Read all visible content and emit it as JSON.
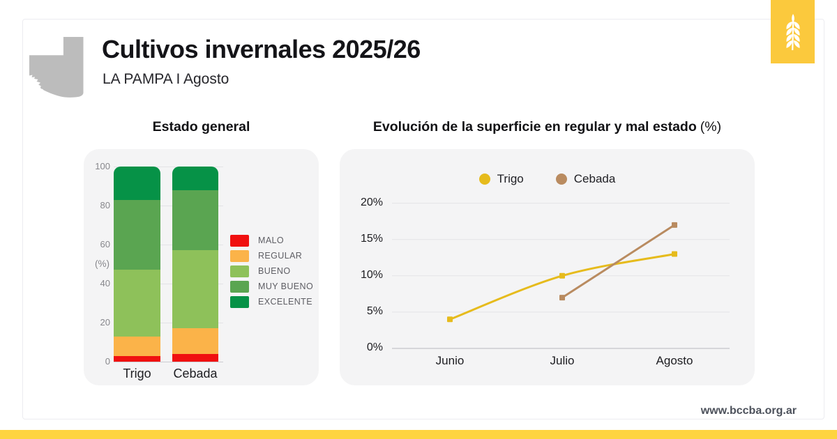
{
  "header": {
    "title": "Cultivos invernales 2025/26",
    "subtitle": "LA PAMPA I Agosto"
  },
  "footer": {
    "website": "www.bccba.org.ar"
  },
  "icons": {
    "brand": "wheat-spike-icon",
    "map": "la-pampa-province-silhouette"
  },
  "theme": {
    "accent_yellow": "#FBC93D",
    "footer_bar_yellow": "#FED440",
    "panel_bg": "#F4F4F5",
    "card_border": "#ECECF0",
    "map_gray": "#BCBCBC",
    "gridline": "#E3E3E6",
    "baseline": "#CCCCD1",
    "axis_text_gray": "#87878C",
    "legend_text_gray": "#5E5E64",
    "website_text": "#4C515B"
  },
  "chart_data": [
    {
      "type": "bar",
      "stacked": true,
      "title": "Estado general",
      "ylabel": "(%)",
      "ylim": [
        0,
        100
      ],
      "yticks": [
        0,
        20,
        40,
        60,
        80,
        100
      ],
      "grid": true,
      "legend_position": "right",
      "categories": [
        "Trigo",
        "Cebada"
      ],
      "series": [
        {
          "name": "MALO",
          "color": "#F01010",
          "values": [
            3,
            4
          ]
        },
        {
          "name": "REGULAR",
          "color": "#FBB349",
          "values": [
            10,
            13
          ]
        },
        {
          "name": "BUENO",
          "color": "#8EC15A",
          "values": [
            34,
            40
          ]
        },
        {
          "name": "MUY BUENO",
          "color": "#5AA551",
          "values": [
            36,
            31
          ]
        },
        {
          "name": "EXCELENTE",
          "color": "#069247",
          "values": [
            17,
            12
          ]
        }
      ]
    },
    {
      "type": "line",
      "title": "Evolución de la superficie en regular y mal estado",
      "title_suffix": "(%)",
      "ylim": [
        0,
        20
      ],
      "yticks": [
        0,
        5,
        10,
        15,
        20
      ],
      "ytick_format": "percent",
      "grid": true,
      "legend_position": "top",
      "x": [
        "Junio",
        "Julio",
        "Agosto"
      ],
      "series": [
        {
          "name": "Trigo",
          "color": "#E6BB1C",
          "smooth": true,
          "values": [
            4,
            10,
            13
          ]
        },
        {
          "name": "Cebada",
          "color": "#B98B60",
          "smooth": false,
          "values": [
            null,
            7,
            17
          ]
        }
      ]
    }
  ]
}
